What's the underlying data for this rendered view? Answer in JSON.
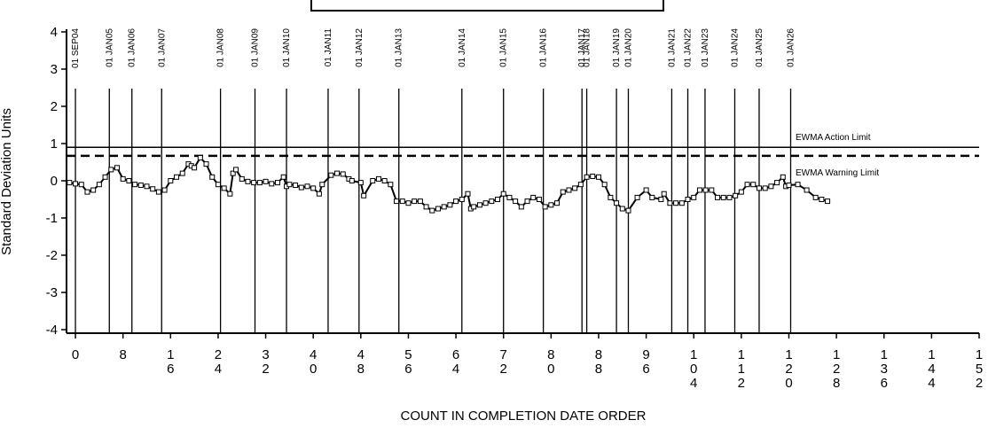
{
  "chart_data": {
    "type": "line",
    "x_label": "COUNT IN COMPLETION DATE ORDER",
    "y_label": "Standard Deviation Units",
    "xlim": [
      -1.5,
      152
    ],
    "ylim": [
      -4,
      4
    ],
    "xticks": [
      0,
      8,
      16,
      24,
      32,
      40,
      48,
      56,
      64,
      72,
      80,
      88,
      96,
      104,
      112,
      120,
      128,
      136,
      144,
      152
    ],
    "yticks": [
      -4,
      -3,
      -2,
      -1,
      0,
      1,
      2,
      3,
      4
    ],
    "series": [
      {
        "name": "EWMA",
        "color": "#000000",
        "x": [
          -1,
          0,
          1,
          2,
          3,
          4,
          5,
          6,
          7,
          8,
          9,
          10,
          11,
          12,
          13,
          14,
          15,
          16,
          17,
          18,
          19,
          19.5,
          20,
          21,
          22,
          23,
          24,
          25,
          26,
          26.5,
          27,
          28,
          29,
          30,
          31,
          32,
          33,
          34,
          35,
          35.5,
          36,
          37,
          38,
          39,
          40,
          41,
          41.5,
          43,
          44,
          45,
          46,
          46.5,
          48,
          48.5,
          50,
          51,
          52,
          53,
          54,
          55,
          56,
          57,
          58,
          59,
          60,
          61,
          62,
          63,
          64,
          65,
          66,
          66.5,
          67,
          68,
          69,
          70,
          71,
          72,
          73,
          74,
          75,
          76,
          77,
          78,
          79,
          80,
          81,
          82,
          83,
          84,
          85,
          86,
          87,
          88,
          89,
          90,
          91,
          92,
          93,
          94.5,
          96,
          97,
          98.5,
          99,
          100,
          101,
          102,
          103,
          104,
          105,
          106,
          107,
          108,
          109,
          110,
          111,
          112,
          113,
          114,
          115,
          116,
          117,
          118,
          119,
          119.5,
          120,
          121.5,
          123,
          124.5,
          125.5,
          126.5
        ],
        "values": [
          -0.05,
          -0.08,
          -0.1,
          -0.3,
          -0.25,
          -0.1,
          0.1,
          0.3,
          0.35,
          0.05,
          0.0,
          -0.1,
          -0.12,
          -0.15,
          -0.22,
          -0.3,
          -0.25,
          0.0,
          0.1,
          0.2,
          0.45,
          0.4,
          0.35,
          0.62,
          0.45,
          0.1,
          -0.1,
          -0.2,
          -0.35,
          0.2,
          0.3,
          0.05,
          -0.02,
          -0.05,
          -0.05,
          -0.02,
          -0.08,
          -0.05,
          0.1,
          -0.15,
          -0.1,
          -0.12,
          -0.18,
          -0.15,
          -0.2,
          -0.35,
          -0.1,
          0.15,
          0.2,
          0.18,
          0.05,
          0.0,
          -0.05,
          -0.4,
          0.0,
          0.05,
          0.0,
          -0.1,
          -0.55,
          -0.55,
          -0.6,
          -0.55,
          -0.55,
          -0.7,
          -0.8,
          -0.75,
          -0.7,
          -0.65,
          -0.55,
          -0.5,
          -0.35,
          -0.75,
          -0.7,
          -0.65,
          -0.6,
          -0.55,
          -0.5,
          -0.35,
          -0.45,
          -0.55,
          -0.7,
          -0.55,
          -0.45,
          -0.5,
          -0.7,
          -0.65,
          -0.6,
          -0.3,
          -0.25,
          -0.2,
          -0.1,
          0.1,
          0.12,
          0.1,
          -0.1,
          -0.45,
          -0.6,
          -0.75,
          -0.8,
          -0.45,
          -0.25,
          -0.45,
          -0.5,
          -0.35,
          -0.6,
          -0.6,
          -0.6,
          -0.5,
          -0.45,
          -0.25,
          -0.25,
          -0.25,
          -0.45,
          -0.45,
          -0.45,
          -0.4,
          -0.3,
          -0.1,
          -0.1,
          -0.2,
          -0.2,
          -0.15,
          -0.05,
          0.1,
          -0.15,
          -0.12,
          -0.1,
          -0.25,
          -0.45,
          -0.5,
          -0.55
        ]
      }
    ],
    "limits": [
      {
        "label": "EWMA Action Limit",
        "value": 0.9,
        "dashed": false
      },
      {
        "label": "EWMA Warning Limit",
        "value": 0.67,
        "dashed": true
      }
    ],
    "date_lines": [
      {
        "label": "01 SEP04",
        "x": 0
      },
      {
        "label": "01 JAN05",
        "x": 5.7
      },
      {
        "label": "01 JAN06",
        "x": 9.5
      },
      {
        "label": "01 JAN07",
        "x": 14.5
      },
      {
        "label": "01 JAN08",
        "x": 24.4
      },
      {
        "label": "01 JAN09",
        "x": 30.2
      },
      {
        "label": "01 JAN10",
        "x": 35.5
      },
      {
        "label": "01 JAN11",
        "x": 42.5
      },
      {
        "label": "01 JAN12",
        "x": 47.7
      },
      {
        "label": "01 JAN13",
        "x": 54.4
      },
      {
        "label": "01 JAN14",
        "x": 65
      },
      {
        "label": "01 JAN15",
        "x": 72
      },
      {
        "label": "01 JAN16",
        "x": 78.7
      },
      {
        "label": "01 JAN17",
        "x": 85.2
      },
      {
        "label": "01 JAN18",
        "x": 86
      },
      {
        "label": "01 JAN19",
        "x": 91
      },
      {
        "label": "01 JAN20",
        "x": 93
      },
      {
        "label": "01 JAN21",
        "x": 100.3
      },
      {
        "label": "01 JAN22",
        "x": 103
      },
      {
        "label": "01 JAN23",
        "x": 105.9
      },
      {
        "label": "01 JAN24",
        "x": 110.9
      },
      {
        "label": "01 JAN25",
        "x": 115
      },
      {
        "label": "01 JAN26",
        "x": 120.3
      }
    ]
  }
}
